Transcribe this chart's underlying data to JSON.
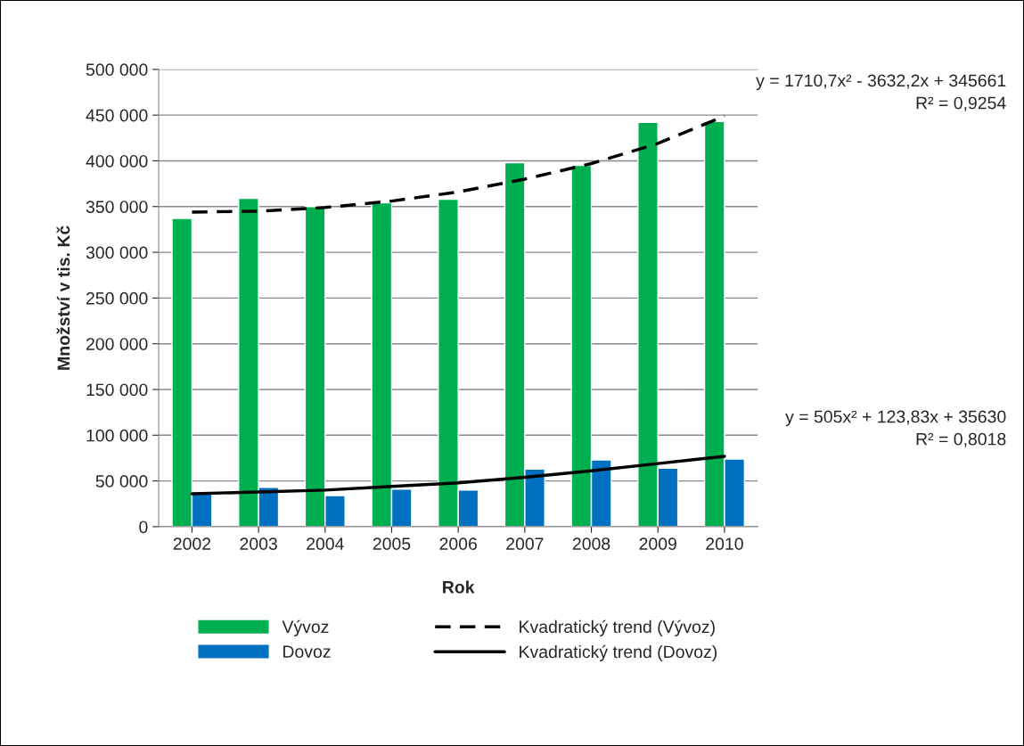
{
  "chart_data": {
    "type": "bar",
    "xlabel": "Rok",
    "ylabel": "Množství v tis. Kč",
    "categories": [
      "2002",
      "2003",
      "2004",
      "2005",
      "2006",
      "2007",
      "2008",
      "2009",
      "2010"
    ],
    "series": [
      {
        "name": "Vývoz",
        "color": "#00b050",
        "values": [
          337000,
          359000,
          350000,
          354000,
          358000,
          398000,
          395000,
          442000,
          443000
        ]
      },
      {
        "name": "Dovoz",
        "color": "#0070c0",
        "values": [
          37000,
          43000,
          34000,
          41000,
          40000,
          63000,
          73000,
          64000,
          74000
        ]
      },
      {
        "name": "Kvadratický trend (Vývoz)",
        "type": "line",
        "color": "#000000",
        "line_style": "dashed",
        "values": [
          344000,
          345000,
          349000,
          356000,
          366000,
          380000,
          397000,
          419000,
          449000
        ]
      },
      {
        "name": "Kvadratický trend (Dovoz)",
        "type": "line",
        "color": "#000000",
        "line_style": "solid",
        "values": [
          36000,
          38000,
          40000,
          44000,
          48000,
          54000,
          61000,
          69000,
          77000
        ]
      }
    ],
    "ylim": [
      0,
      500000
    ],
    "yticks": [
      0,
      {
        "value": 50000,
        "label": "50 000"
      },
      {
        "value": 100000,
        "label": "100 000"
      },
      {
        "value": 150000,
        "label": "150 000"
      },
      {
        "value": 200000,
        "label": "200 000"
      },
      {
        "value": 250000,
        "label": "250 000"
      },
      {
        "value": 300000,
        "label": "300 000"
      },
      {
        "value": 350000,
        "label": "350 000"
      },
      {
        "value": 400000,
        "label": "400 000"
      },
      {
        "value": 450000,
        "label": "450 000"
      },
      {
        "value": 500000,
        "label": "500 000"
      }
    ],
    "grid": "y",
    "legend": "bottom",
    "annotations": [
      "y = 1710,7x² - 3632,2x + 345661\nR² = 0,9254",
      "y = 505x² + 123,83x + 35630\nR² = 0,8018"
    ]
  }
}
